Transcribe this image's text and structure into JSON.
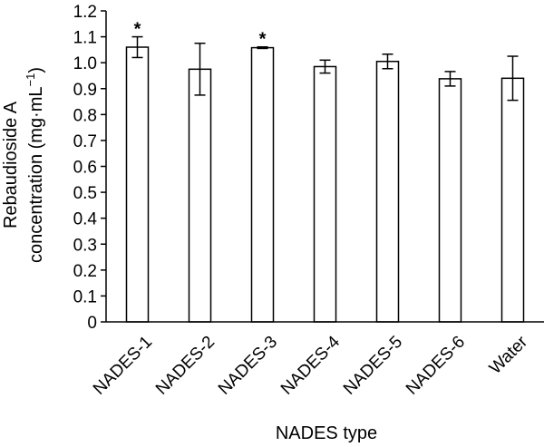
{
  "chart_data": {
    "type": "bar",
    "categories": [
      "NADES-1",
      "NADES-2",
      "NADES-3",
      "NADES-4",
      "NADES-5",
      "NADES-6",
      "Water"
    ],
    "values": [
      1.06,
      0.975,
      1.058,
      0.985,
      1.005,
      0.938,
      0.94
    ],
    "errors": [
      0.04,
      0.1,
      0.003,
      0.025,
      0.028,
      0.028,
      0.085
    ],
    "significance": [
      "*",
      "",
      "*",
      "",
      "",
      "",
      ""
    ],
    "ylabel_line1": "Rebaudioside A",
    "ylabel_line2": "concentration (mg·mL",
    "ylabel_sup": "−1",
    "ylabel_close": ")",
    "xlabel": "NADES type",
    "ylim": [
      0,
      1.2
    ],
    "yticks": [
      "0",
      "0.1",
      "0.2",
      "0.3",
      "0.4",
      "0.5",
      "0.6",
      "0.7",
      "0.8",
      "0.9",
      "1.0",
      "1.1",
      "1.2"
    ],
    "grid": false,
    "colors": {
      "bar_fill": "#ffffff",
      "bar_stroke": "#000000"
    }
  }
}
